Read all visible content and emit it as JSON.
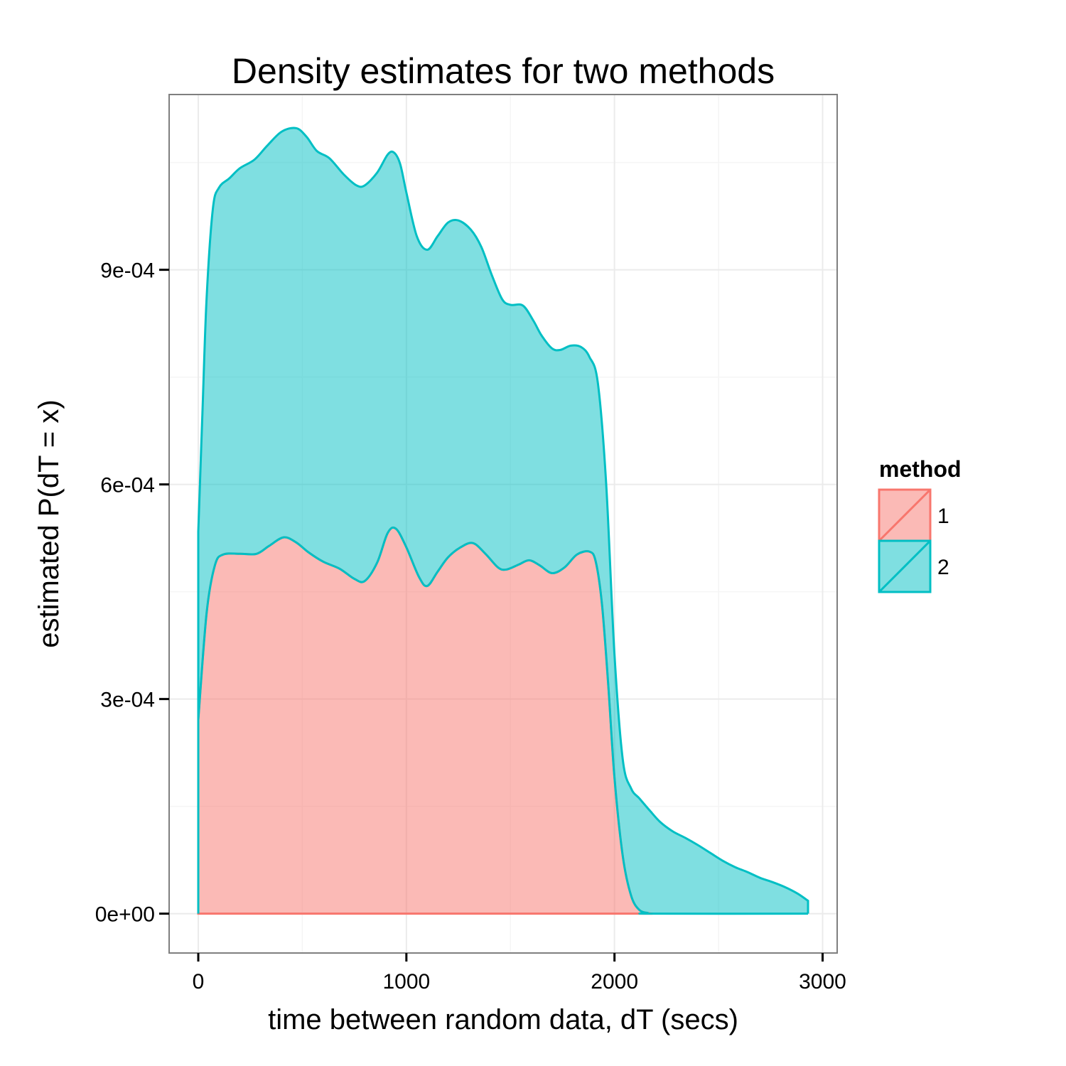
{
  "chart_data": {
    "type": "area",
    "title": "Density estimates for two methods",
    "xlabel": "time between random data, dT (secs)",
    "ylabel": "estimated P(dT = x)",
    "xlim": [
      -140,
      3070
    ],
    "ylim": [
      -5.5e-05,
      0.001145
    ],
    "x_ticks": [
      {
        "value": 0,
        "label": "0"
      },
      {
        "value": 1000,
        "label": "1000"
      },
      {
        "value": 2000,
        "label": "2000"
      },
      {
        "value": 3000,
        "label": "3000"
      }
    ],
    "y_ticks": [
      {
        "value": 0,
        "label": "0e+00"
      },
      {
        "value": 0.0003,
        "label": "3e-04"
      },
      {
        "value": 0.0006,
        "label": "6e-04"
      },
      {
        "value": 0.0009,
        "label": "9e-04"
      }
    ],
    "grid": true,
    "legend": {
      "title": "method",
      "position": "right"
    },
    "series": [
      {
        "name": "1",
        "fill": "#F8766D",
        "stroke": "#F8766D",
        "points": [
          [
            0,
            0.000271
          ],
          [
            40,
            0.00042
          ],
          [
            80,
            0.000487
          ],
          [
            120,
            0.000502
          ],
          [
            200,
            0.000503
          ],
          [
            280,
            0.000503
          ],
          [
            340,
            0.000514
          ],
          [
            410,
            0.000526
          ],
          [
            470,
            0.000519
          ],
          [
            530,
            0.000505
          ],
          [
            600,
            0.000492
          ],
          [
            680,
            0.000482
          ],
          [
            750,
            0.000468
          ],
          [
            800,
            0.000465
          ],
          [
            860,
            0.000491
          ],
          [
            910,
            0.000532
          ],
          [
            950,
            0.000538
          ],
          [
            1000,
            0.000512
          ],
          [
            1060,
            0.000471
          ],
          [
            1100,
            0.000458
          ],
          [
            1150,
            0.000478
          ],
          [
            1200,
            0.000498
          ],
          [
            1260,
            0.000512
          ],
          [
            1320,
            0.000518
          ],
          [
            1380,
            0.000503
          ],
          [
            1440,
            0.000484
          ],
          [
            1480,
            0.000481
          ],
          [
            1540,
            0.000488
          ],
          [
            1590,
            0.000494
          ],
          [
            1640,
            0.000487
          ],
          [
            1700,
            0.000476
          ],
          [
            1760,
            0.000484
          ],
          [
            1820,
            0.000502
          ],
          [
            1880,
            0.000506
          ],
          [
            1910,
            0.000492
          ],
          [
            1940,
            0.000432
          ],
          [
            1970,
            0.00032
          ],
          [
            2000,
            0.00019
          ],
          [
            2040,
            8e-05
          ],
          [
            2080,
            2.5e-05
          ],
          [
            2120,
            5e-06
          ],
          [
            2160,
            1e-06
          ],
          [
            2180,
            0
          ]
        ]
      },
      {
        "name": "2",
        "fill": "#00BFC4",
        "stroke": "#00BFC4",
        "points": [
          [
            0,
            0.000534
          ],
          [
            20,
            0.0007
          ],
          [
            40,
            0.00086
          ],
          [
            70,
            0.000985
          ],
          [
            100,
            0.001015
          ],
          [
            150,
            0.001028
          ],
          [
            200,
            0.001042
          ],
          [
            270,
            0.001054
          ],
          [
            330,
            0.001073
          ],
          [
            400,
            0.001093
          ],
          [
            470,
            0.001098
          ],
          [
            520,
            0.001086
          ],
          [
            570,
            0.001066
          ],
          [
            630,
            0.001056
          ],
          [
            700,
            0.001033
          ],
          [
            760,
            0.001018
          ],
          [
            800,
            0.001018
          ],
          [
            860,
            0.001036
          ],
          [
            910,
            0.001061
          ],
          [
            940,
            0.001064
          ],
          [
            970,
            0.001048
          ],
          [
            1000,
            0.001008
          ],
          [
            1050,
            0.000947
          ],
          [
            1100,
            0.000928
          ],
          [
            1150,
            0.000947
          ],
          [
            1200,
            0.000966
          ],
          [
            1250,
            0.000969
          ],
          [
            1310,
            0.000956
          ],
          [
            1360,
            0.000932
          ],
          [
            1410,
            0.000893
          ],
          [
            1460,
            0.000859
          ],
          [
            1500,
            0.000851
          ],
          [
            1560,
            0.00085
          ],
          [
            1610,
            0.000829
          ],
          [
            1650,
            0.000808
          ],
          [
            1700,
            0.00079
          ],
          [
            1740,
            0.000788
          ],
          [
            1790,
            0.000794
          ],
          [
            1840,
            0.000792
          ],
          [
            1880,
            0.000778
          ],
          [
            1920,
            0.000742
          ],
          [
            1960,
            0.000601
          ],
          [
            2000,
            0.000362
          ],
          [
            2040,
            0.000215
          ],
          [
            2080,
            0.000175
          ],
          [
            2120,
            0.000161
          ],
          [
            2170,
            0.000144
          ],
          [
            2220,
            0.000128
          ],
          [
            2280,
            0.000115
          ],
          [
            2340,
            0.000106
          ],
          [
            2400,
            9.6e-05
          ],
          [
            2460,
            8.5e-05
          ],
          [
            2520,
            7.4e-05
          ],
          [
            2580,
            6.5e-05
          ],
          [
            2640,
            5.8e-05
          ],
          [
            2700,
            5e-05
          ],
          [
            2760,
            4.4e-05
          ],
          [
            2820,
            3.7e-05
          ],
          [
            2880,
            2.8e-05
          ],
          [
            2930,
            1.8e-05
          ]
        ]
      }
    ]
  }
}
